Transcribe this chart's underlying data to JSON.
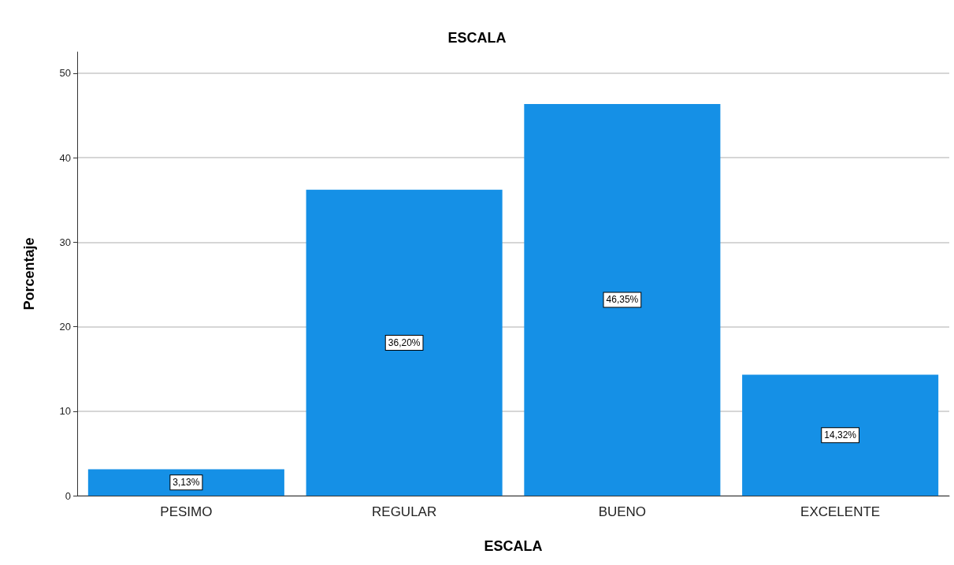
{
  "chart_data": {
    "type": "bar",
    "title": "ESCALA",
    "xlabel": "ESCALA",
    "ylabel": "Porcentaje",
    "categories": [
      "PESIMO",
      "REGULAR",
      "BUENO",
      "EXCELENTE"
    ],
    "values": [
      3.13,
      36.2,
      46.35,
      14.32
    ],
    "value_labels": [
      "3,13%",
      "36,20%",
      "46,35%",
      "14,32%"
    ],
    "color": "#1590e6",
    "ylim": [
      0,
      52.5
    ],
    "yticks": [
      0,
      10,
      20,
      30,
      40,
      50
    ],
    "grid": "y"
  }
}
